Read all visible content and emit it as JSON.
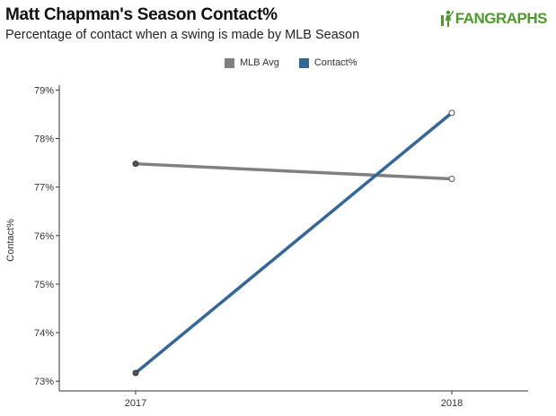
{
  "header": {
    "title": "Matt Chapman's Season Contact%",
    "subtitle": "Percentage of contact when a swing is made by MLB Season",
    "logo_text": "FANGRAPHS"
  },
  "chart_data": {
    "type": "line",
    "title": "Matt Chapman's Season Contact%",
    "subtitle": "Percentage of contact when a swing is made by MLB Season",
    "xlabel": "",
    "ylabel": "Contact%",
    "x": [
      "2017",
      "2018"
    ],
    "xtick_labels": [
      "2017",
      "2018"
    ],
    "ylim": [
      72.8,
      79.1
    ],
    "yticks": [
      73,
      74,
      75,
      76,
      77,
      78,
      79
    ],
    "ytick_labels": [
      "73%",
      "74%",
      "75%",
      "76%",
      "77%",
      "78%",
      "79%"
    ],
    "grid": false,
    "legend_position": "top-center",
    "series": [
      {
        "name": "MLB Avg",
        "color": "#808080",
        "values": [
          77.48,
          77.17
        ]
      },
      {
        "name": "Contact%",
        "color": "#336699",
        "values": [
          73.17,
          78.53
        ]
      }
    ]
  }
}
